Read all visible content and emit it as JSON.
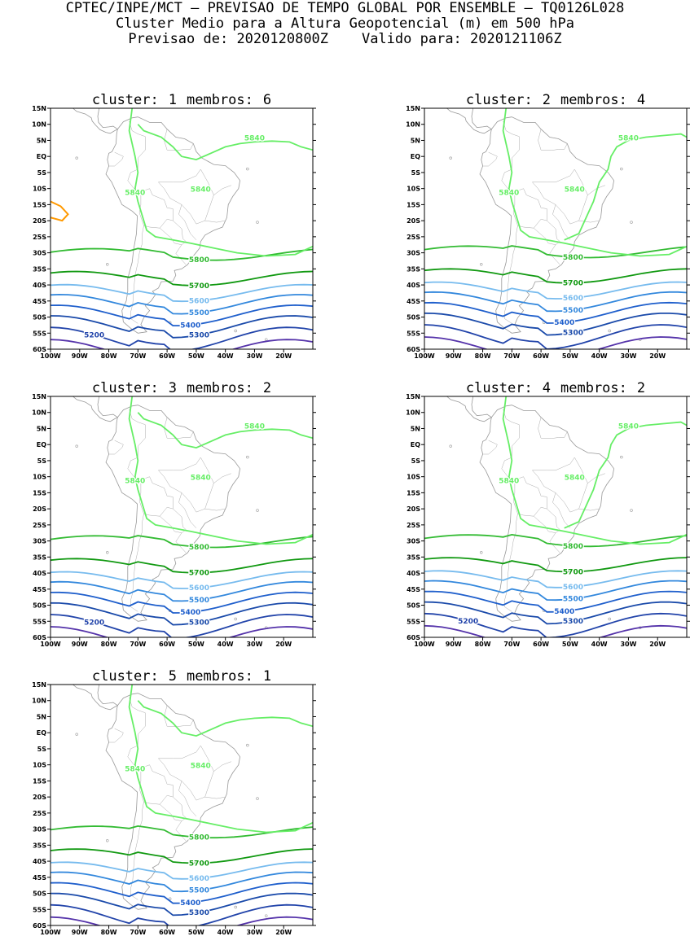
{
  "header": {
    "line1": "CPTEC/INPE/MCT – PREVISAO DE TEMPO GLOBAL POR ENSEMBLE – TQ0126L028",
    "line2": "Cluster Medio para a Altura Geopotencial (m) em 500 hPa",
    "line3": "Previsao de: 2020120800Z    Valido para: 2020121106Z"
  },
  "axes": {
    "lat_labels": [
      "15N",
      "10N",
      "5N",
      "EQ",
      "5S",
      "10S",
      "15S",
      "20S",
      "25S",
      "30S",
      "35S",
      "40S",
      "45S",
      "50S",
      "55S",
      "60S"
    ],
    "lon_labels": [
      "100W",
      "90W",
      "80W",
      "70W",
      "60W",
      "50W",
      "40W",
      "30W",
      "20W"
    ]
  },
  "colors": {
    "c5840": "#66ee66",
    "c5800": "#33bb33",
    "c5700": "#119911",
    "c5600": "#77bbee",
    "c5500": "#3388dd",
    "c5400": "#1f5fcc",
    "c5300": "#1a4aaa",
    "c5200": "#2244aa",
    "c5100": "#5533aa",
    "warm": "#ff9900",
    "coast": "#999999"
  },
  "clusters": [
    {
      "cluster_word": "cluster:",
      "cluster_num": "1",
      "members_word": "membros:",
      "members_num": "6",
      "labels": {
        "l5840a": "5840",
        "l5840b": "5840",
        "l5840c": "5840",
        "l5800": "5800",
        "l5700": "5700",
        "l5600": "5600",
        "l5500": "5500",
        "l5400": "5400",
        "l5300": "5300",
        "l5200": "5200"
      }
    },
    {
      "cluster_word": "cluster:",
      "cluster_num": "2",
      "members_word": "membros:",
      "members_num": "4",
      "labels": {
        "l5840a": "5840",
        "l5840b": "5840",
        "l5840c": "5840",
        "l5800": "5800",
        "l5700": "5700",
        "l5600": "5600",
        "l5500": "5500",
        "l5400": "5400",
        "l5300": "5300",
        "l5200": ""
      }
    },
    {
      "cluster_word": "cluster:",
      "cluster_num": "3",
      "members_word": "membros:",
      "members_num": "2",
      "labels": {
        "l5840a": "5840",
        "l5840b": "5840",
        "l5840c": "5840",
        "l5800": "5800",
        "l5700": "5700",
        "l5600": "5600",
        "l5500": "5500",
        "l5400": "5400",
        "l5300": "5300",
        "l5200": "5200"
      }
    },
    {
      "cluster_word": "cluster:",
      "cluster_num": "4",
      "members_word": "membros:",
      "members_num": "2",
      "labels": {
        "l5840a": "5840",
        "l5840b": "5840",
        "l5840c": "5840",
        "l5800": "5800",
        "l5700": "5700",
        "l5600": "5600",
        "l5500": "5500",
        "l5400": "5400",
        "l5300": "5300",
        "l5200": "5200"
      }
    },
    {
      "cluster_word": "cluster:",
      "cluster_num": "5",
      "members_word": "membros:",
      "members_num": "1",
      "labels": {
        "l5840a": "5840",
        "l5840b": "5840",
        "l5840c": "",
        "l5800": "5800",
        "l5700": "5700",
        "l5600": "5600",
        "l5500": "5500",
        "l5400": "5400",
        "l5300": "5300",
        "l5200": ""
      }
    }
  ]
}
